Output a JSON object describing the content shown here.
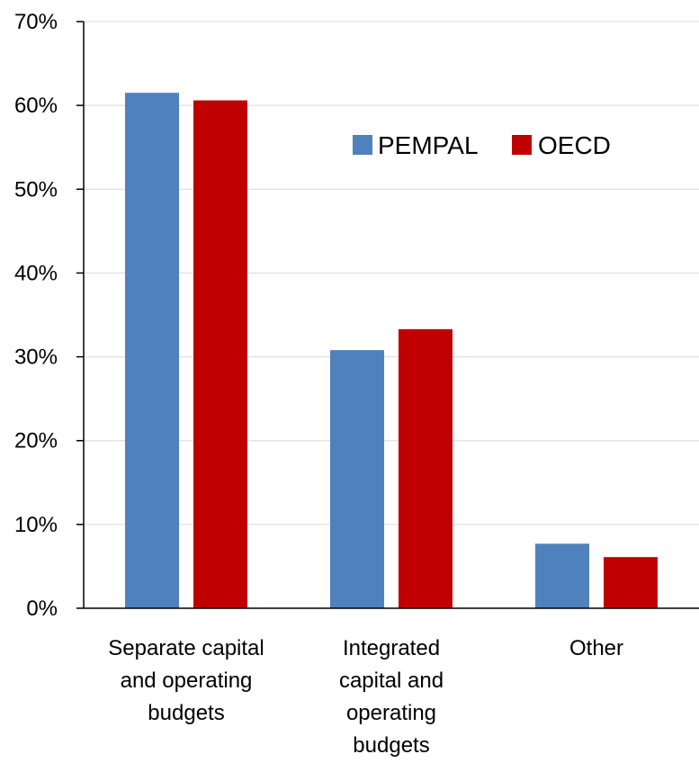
{
  "chart_data": {
    "type": "bar",
    "categories": [
      [
        "Separate capital",
        "and operating",
        "budgets"
      ],
      [
        "Integrated",
        "capital and",
        "operating",
        "budgets"
      ],
      [
        "Other"
      ]
    ],
    "series": [
      {
        "name": "PEMPAL",
        "color": "#4F81BD",
        "values": [
          61.5,
          30.8,
          7.7
        ]
      },
      {
        "name": "OECD",
        "color": "#C00000",
        "values": [
          60.6,
          33.3,
          6.1
        ]
      }
    ],
    "ylim": [
      0,
      70
    ],
    "yticks": [
      0,
      10,
      20,
      30,
      40,
      50,
      60,
      70
    ],
    "ytick_labels": [
      "0%",
      "10%",
      "20%",
      "30%",
      "40%",
      "50%",
      "60%",
      "70%"
    ],
    "grid": true,
    "legend_position": "top-right",
    "title": "",
    "xlabel": "",
    "ylabel": ""
  }
}
